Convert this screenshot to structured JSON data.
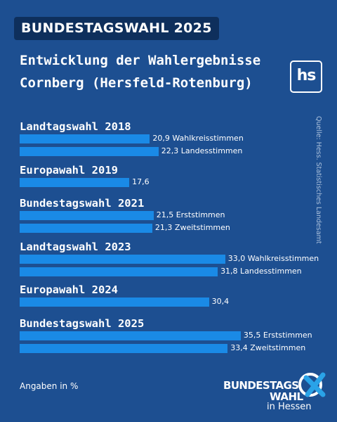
{
  "header": {
    "badge": "BUNDESTAGSWAHL 2025",
    "title_line1": "Entwicklung der Wahlergebnisse",
    "title_line2": "Cornberg (Hersfeld-Rotenburg)",
    "logo_text": "hs"
  },
  "source": "Quelle: Hess. Statistisches Landesamt",
  "footnote": "Angaben in %",
  "brand_logo": {
    "line1": "BUNDESTAGS",
    "line2": "WAHL",
    "line3": "in Hessen"
  },
  "colors": {
    "background": "#1d4f91",
    "bar": "#1a8ae6",
    "badge": "#0e2f5c"
  },
  "chart_data": {
    "type": "bar",
    "orientation": "horizontal",
    "unit": "%",
    "xlim": [
      0,
      40
    ],
    "groups": [
      {
        "name": "Landtagswahl 2018",
        "bars": [
          {
            "value": 20.9,
            "value_label": "20,9",
            "label": "Wahlkreisstimmen"
          },
          {
            "value": 22.3,
            "value_label": "22,3",
            "label": "Landesstimmen"
          }
        ]
      },
      {
        "name": "Europawahl 2019",
        "bars": [
          {
            "value": 17.6,
            "value_label": "17,6",
            "label": ""
          }
        ]
      },
      {
        "name": "Bundestagswahl 2021",
        "bars": [
          {
            "value": 21.5,
            "value_label": "21,5",
            "label": "Erststimmen"
          },
          {
            "value": 21.3,
            "value_label": "21,3",
            "label": "Zweitstimmen"
          }
        ]
      },
      {
        "name": "Landtagswahl 2023",
        "bars": [
          {
            "value": 33.0,
            "value_label": "33,0",
            "label": "Wahlkreisstimmen"
          },
          {
            "value": 31.8,
            "value_label": "31,8",
            "label": "Landesstimmen"
          }
        ]
      },
      {
        "name": "Europawahl 2024",
        "bars": [
          {
            "value": 30.4,
            "value_label": "30,4",
            "label": ""
          }
        ]
      },
      {
        "name": "Bundestagswahl 2025",
        "bars": [
          {
            "value": 35.5,
            "value_label": "35,5",
            "label": "Erststimmen"
          },
          {
            "value": 33.4,
            "value_label": "33,4",
            "label": "Zweitstimmen"
          }
        ]
      }
    ]
  }
}
